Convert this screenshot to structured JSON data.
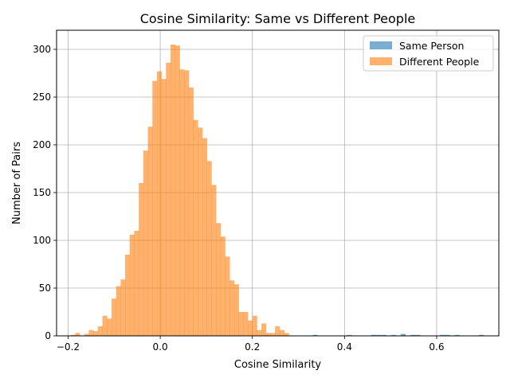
{
  "chart_data": {
    "type": "bar",
    "title": "Cosine Similarity: Same vs Different People",
    "xlabel": "Cosine Similarity",
    "ylabel": "Number of Pairs",
    "xlim": [
      -0.225,
      0.735
    ],
    "ylim": [
      0,
      320
    ],
    "xticks": [
      -0.2,
      0.0,
      0.2,
      0.4,
      0.6
    ],
    "xtick_labels": [
      "−0.2",
      "0.0",
      "0.2",
      "0.4",
      "0.6"
    ],
    "yticks": [
      0,
      50,
      100,
      150,
      200,
      250,
      300
    ],
    "ytick_labels": [
      "0",
      "50",
      "100",
      "150",
      "200",
      "250",
      "300"
    ],
    "grid": true,
    "legend_position": "top-right",
    "series": [
      {
        "name": "Same Person",
        "color": "#1f77b4",
        "opacity": 0.6,
        "bin_width": 0.0106,
        "bins": [
          {
            "x": 0.331,
            "y": 1
          },
          {
            "x": 0.341,
            "y": 0
          },
          {
            "x": 0.405,
            "y": 1
          },
          {
            "x": 0.416,
            "y": 0
          },
          {
            "x": 0.458,
            "y": 1
          },
          {
            "x": 0.469,
            "y": 1
          },
          {
            "x": 0.48,
            "y": 1
          },
          {
            "x": 0.501,
            "y": 1
          },
          {
            "x": 0.522,
            "y": 2
          },
          {
            "x": 0.543,
            "y": 1
          },
          {
            "x": 0.554,
            "y": 1
          },
          {
            "x": 0.607,
            "y": 1
          },
          {
            "x": 0.618,
            "y": 1
          },
          {
            "x": 0.639,
            "y": 1
          },
          {
            "x": 0.692,
            "y": 1
          }
        ]
      },
      {
        "name": "Different People",
        "color": "#ff7f0e",
        "opacity": 0.6,
        "bin_start": -0.1945,
        "bin_width": 0.00986,
        "values": [
          1,
          3,
          0,
          2,
          6,
          5,
          10,
          21,
          18,
          39,
          52,
          59,
          85,
          106,
          110,
          160,
          194,
          219,
          267,
          277,
          269,
          286,
          305,
          304,
          279,
          278,
          260,
          226,
          218,
          207,
          183,
          158,
          118,
          104,
          83,
          58,
          54,
          25,
          25,
          16,
          21,
          6,
          13,
          3,
          3,
          10,
          6,
          3
        ]
      }
    ]
  }
}
